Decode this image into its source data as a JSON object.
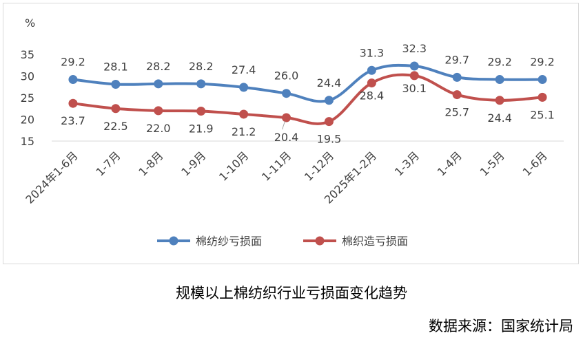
{
  "chart_data": {
    "type": "line",
    "unit_label": "%",
    "categories": [
      "2024年1-6月",
      "1-7月",
      "1-8月",
      "1-9月",
      "1-10月",
      "1-11月",
      "1-12月",
      "2025年1-2月",
      "1-3月",
      "1-4月",
      "1-5月",
      "1-6月"
    ],
    "yticks": [
      15,
      20,
      25,
      30,
      35
    ],
    "ylim": [
      15,
      35
    ],
    "grid": false,
    "legend_position": "bottom",
    "series": [
      {
        "name": "棉纺纱亏损面",
        "color": "#4f81bd",
        "label_position": "above",
        "values": [
          29.2,
          28.1,
          28.2,
          28.2,
          27.4,
          26.0,
          24.4,
          31.3,
          32.3,
          29.7,
          29.2,
          29.2
        ]
      },
      {
        "name": "棉织造亏损面",
        "color": "#c0504d",
        "label_position": "below",
        "values": [
          23.7,
          22.5,
          22.0,
          21.9,
          21.2,
          20.4,
          19.5,
          28.4,
          30.1,
          25.7,
          24.4,
          25.1
        ]
      }
    ]
  },
  "caption": "规模以上棉纺织行业亏损面变化趋势",
  "source": "数据来源：国家统计局"
}
